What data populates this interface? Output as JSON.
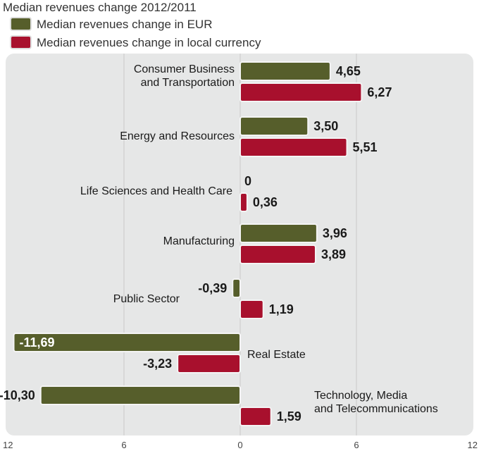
{
  "chart_data": {
    "type": "bar",
    "orientation": "horizontal",
    "title": "Median revenues change 2012/2011",
    "categories": [
      "Consumer Business\nand Transportation",
      "Energy and Resources",
      "Life Sciences and Health Care",
      "Manufacturing",
      "Public Sector",
      "Real Estate",
      "Technology, Media\nand Telecommunications"
    ],
    "series": [
      {
        "name": "Median revenues change in EUR",
        "color": "#565e2b",
        "values": [
          4.65,
          3.5,
          0,
          3.96,
          -0.39,
          -11.69,
          -10.3
        ],
        "labels": [
          "4,65",
          "3,50",
          "0",
          "3,96",
          "-0,39",
          "-11,69",
          "-10,30"
        ]
      },
      {
        "name": "Median revenues change in local currency",
        "color": "#a8102d",
        "values": [
          6.27,
          5.51,
          0.36,
          3.89,
          1.19,
          -3.23,
          1.59
        ],
        "labels": [
          "6,27",
          "5,51",
          "0,36",
          "3,89",
          "1,19",
          "-3,23",
          "1,59"
        ]
      }
    ],
    "xlim": [
      -12,
      12
    ],
    "xticks": [
      -12,
      -6,
      0,
      6,
      12
    ],
    "xtick_labels": [
      "12",
      "6",
      "0",
      "6",
      "12"
    ],
    "grid": true,
    "legend_position": "top-left",
    "background": "#e6e7e7"
  }
}
